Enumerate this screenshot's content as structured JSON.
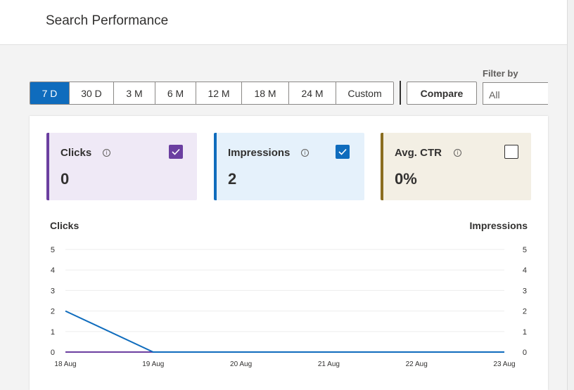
{
  "header": {
    "title": "Search Performance"
  },
  "range_buttons": [
    {
      "label": "7 D",
      "active": true
    },
    {
      "label": "30 D",
      "active": false
    },
    {
      "label": "3 M",
      "active": false
    },
    {
      "label": "6 M",
      "active": false
    },
    {
      "label": "12 M",
      "active": false
    },
    {
      "label": "18 M",
      "active": false
    },
    {
      "label": "24 M",
      "active": false
    },
    {
      "label": "Custom",
      "active": false
    }
  ],
  "compare_label": "Compare",
  "filter": {
    "label": "Filter by",
    "value": "All"
  },
  "cards": {
    "clicks": {
      "title": "Clicks",
      "value": "0",
      "checked": true,
      "color": "#6b3fa0"
    },
    "impressions": {
      "title": "Impressions",
      "value": "2",
      "checked": true,
      "color": "#0f6cbd"
    },
    "ctr": {
      "title": "Avg. CTR",
      "value": "0%",
      "checked": false,
      "color": "#8a6d20"
    }
  },
  "chart_data": {
    "type": "line",
    "x": [
      "18 Aug",
      "19 Aug",
      "20 Aug",
      "21 Aug",
      "22 Aug",
      "23 Aug"
    ],
    "ylabel_left": "Clicks",
    "ylabel_right": "Impressions",
    "ylim_left": [
      0,
      5
    ],
    "ylim_right": [
      0,
      5
    ],
    "yticks_left": [
      "0",
      "1",
      "2",
      "3",
      "4",
      "5"
    ],
    "yticks_right": [
      "0",
      "1",
      "2",
      "3",
      "4",
      "5"
    ],
    "grid": true,
    "series": [
      {
        "name": "Clicks",
        "axis": "left",
        "color": "#6b3fa0",
        "values": [
          0,
          0,
          0,
          0,
          0,
          0
        ]
      },
      {
        "name": "Impressions",
        "axis": "right",
        "color": "#0f6cbd",
        "values": [
          2,
          0,
          0,
          0,
          0,
          0
        ]
      }
    ]
  }
}
